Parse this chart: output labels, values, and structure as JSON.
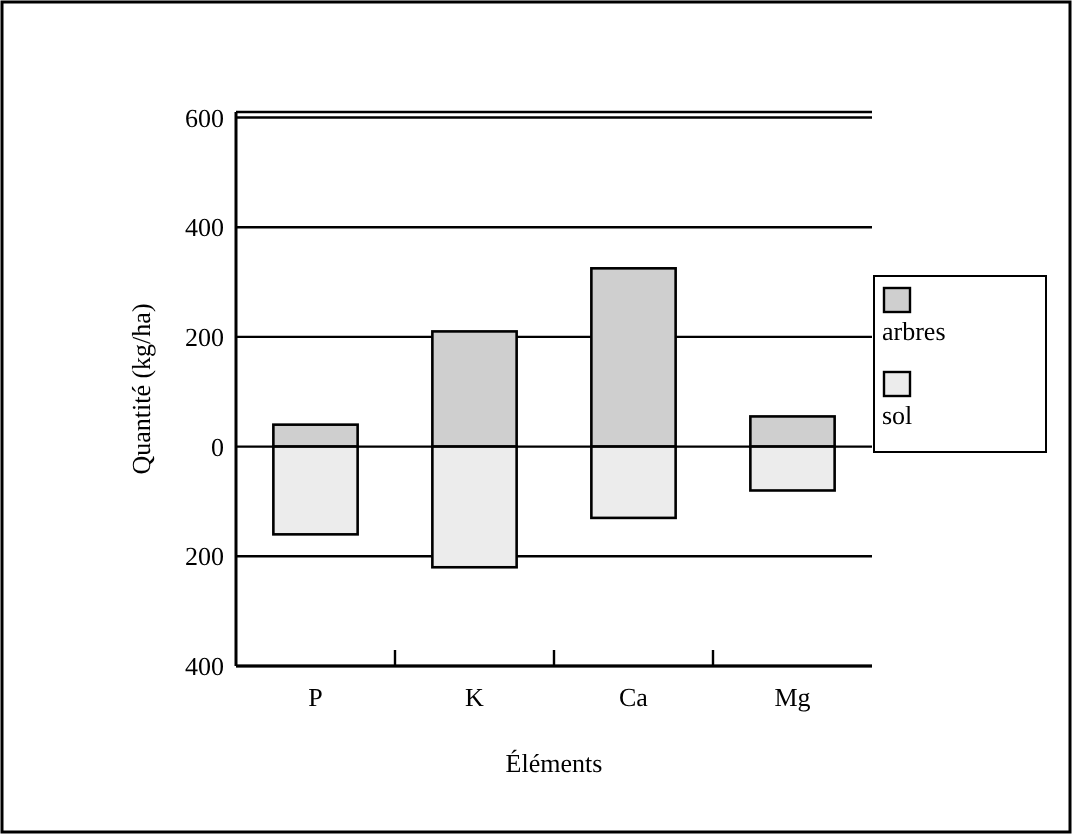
{
  "chart_data": {
    "type": "bar",
    "stacked": true,
    "xlabel": "Éléments",
    "ylabel": "Quantité (kg/ha)",
    "categories": [
      "P",
      "K",
      "Ca",
      "Mg"
    ],
    "series": [
      {
        "name": "arbres",
        "color": "#cfcfcf",
        "values": [
          40,
          210,
          325,
          55
        ]
      },
      {
        "name": "sol",
        "color": "#ececec",
        "values": [
          -160,
          -220,
          -130,
          -80
        ]
      }
    ],
    "ylim": [
      -400,
      610
    ],
    "yticks": [
      {
        "value": -400,
        "label": "400"
      },
      {
        "value": -200,
        "label": "200"
      },
      0,
      200,
      400,
      600
    ],
    "grid": "y",
    "legend": "right"
  }
}
